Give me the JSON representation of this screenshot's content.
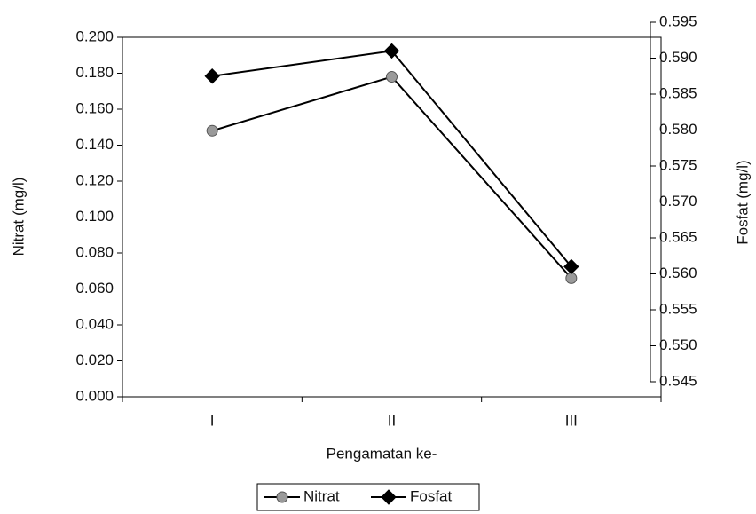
{
  "chart_data": {
    "type": "line",
    "x_label": "Pengamatan ke-",
    "y_label": "Nitrat (mg/l)",
    "y2_label": "Fosfat (mg/l)",
    "categories": [
      "I",
      "II",
      "III"
    ],
    "series": [
      {
        "name": "Nitrat",
        "color": "#000000",
        "marker_color": "#9a9a9a",
        "marker": "circle",
        "values": [
          0.148,
          0.178,
          0.066
        ]
      },
      {
        "name": "Fosfat",
        "color": "#000000",
        "marker_color": "#000000",
        "marker": "diamond",
        "axis": "y2",
        "values": [
          0.5875,
          0.591,
          0.561
        ]
      }
    ],
    "ylim": [
      0,
      0.2
    ],
    "yticks": [
      {
        "value": 0,
        "label": "0.000"
      },
      {
        "value": 0.02,
        "label": "0.020"
      },
      {
        "value": 0.04,
        "label": "0.040"
      },
      {
        "value": 0.06,
        "label": "0.060"
      },
      {
        "value": 0.08,
        "label": "0.080"
      },
      {
        "value": 0.1,
        "label": "0.100"
      },
      {
        "value": 0.12,
        "label": "0.120"
      },
      {
        "value": 0.14,
        "label": "0.140"
      },
      {
        "value": 0.16,
        "label": "0.160"
      },
      {
        "value": 0.18,
        "label": "0.180"
      },
      {
        "value": 0.2,
        "label": "0.200"
      }
    ],
    "y2lim": [
      0.545,
      0.595
    ],
    "y2ticks": [
      0.545,
      {
        "value": 0.55,
        "label": "0.550"
      },
      0.555,
      {
        "value": 0.56,
        "label": "0.560"
      },
      0.565,
      {
        "value": 0.57,
        "label": "0.570"
      },
      0.575,
      {
        "value": 0.58,
        "label": "0.580"
      },
      0.585,
      {
        "value": 0.59,
        "label": "0.590"
      },
      0.595
    ],
    "legend": "bottom",
    "grid": false
  }
}
